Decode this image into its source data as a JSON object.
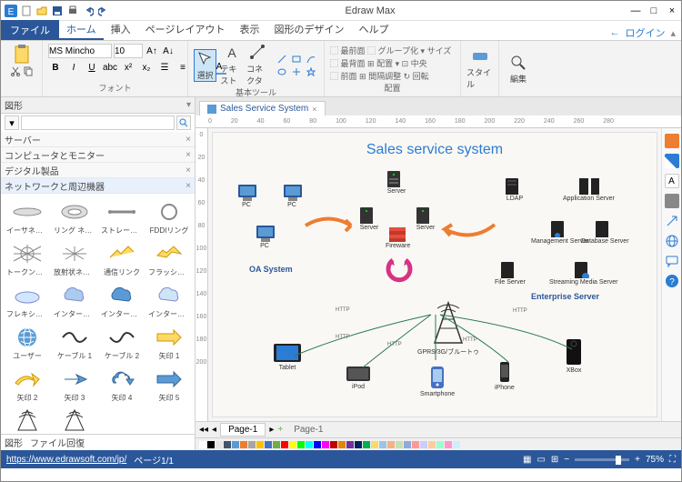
{
  "app_title": "Edraw Max",
  "window": {
    "minimize": "—",
    "maximize": "□",
    "close": "×"
  },
  "tabs": {
    "file": "ファイル",
    "items": [
      "ホーム",
      "挿入",
      "ページレイアウト",
      "表示",
      "図形のデザイン",
      "ヘルプ"
    ],
    "active": 0,
    "login": "ログイン"
  },
  "ribbon": {
    "font": {
      "name": "MS Mincho",
      "size": "10"
    },
    "groups": {
      "font": "フォント",
      "tools": "基本ツール",
      "arrange": "配置",
      "style": "スタイル",
      "edit": "編集"
    },
    "tools": {
      "select": "選択",
      "text": "テキスト",
      "connector": "コネクタ"
    },
    "arrange": [
      "最前面",
      "グループ化",
      "サイズ",
      "最背面",
      "配置",
      "中央",
      "前面",
      "間隔調整",
      "回転"
    ]
  },
  "shapes_panel": {
    "title": "図形",
    "categories": [
      "サーバー",
      "コンピュータとモニター",
      "デジタル製品",
      "ネットワークと周辺機器"
    ],
    "shapes": [
      "イーサネット",
      "リング ネット...",
      "ストレートバス",
      "FDDIリング",
      "トークンリング",
      "放射状ネッ...",
      "通信リンク",
      "フラッシュリンク",
      "フレキシノー...",
      "インターネッ...",
      "インターネッ...",
      "インターネッ...",
      "ユーザー",
      "ケーブル 1",
      "ケーブル 2",
      "矢印 1",
      "矢印 2",
      "矢印 3",
      "矢印 4",
      "矢印 5"
    ],
    "bottom_tabs": [
      "図形",
      "ファイル回復"
    ]
  },
  "doc": {
    "tab_name": "Sales Service System",
    "canvas_title": "Sales service system"
  },
  "sections": {
    "oa": "OA System",
    "enterprise": "Enterprise Server"
  },
  "nodes": {
    "pc1": "PC",
    "pc2": "PC",
    "pc3": "PC",
    "server1": "Server",
    "server2": "Server",
    "server3": "Server",
    "fireware": "Fireware",
    "ldap": "LDAP",
    "appserver": "Application Server",
    "mgmtserver": "Management Server",
    "dbserver": "Database Server",
    "fileserver": "File Server",
    "mediaserver": "Streaming Media Server",
    "tablet": "Tablet",
    "ipod": "iPod",
    "smartphone": "Smartphone",
    "iphone": "iPhone",
    "xbox": "XBox",
    "gprs": "GPRS/3G/ブルートゥ"
  },
  "labels": {
    "http": "HTTP"
  },
  "page": {
    "tab": "Page-1",
    "current": "Page-1"
  },
  "status": {
    "url": "https://www.edrawsoft.com/jp/",
    "page": "ページ1/1",
    "zoom": "75%"
  },
  "colors": {
    "accent": "#2b579a",
    "link": "#2b7cd3",
    "swatches": [
      "#ffffff",
      "#000000",
      "#e7e6e6",
      "#44546a",
      "#5b9bd5",
      "#ed7d31",
      "#a5a5a5",
      "#ffc000",
      "#4472c4",
      "#70ad47",
      "#ff0000",
      "#ffff00",
      "#00ff00",
      "#00ffff",
      "#0000ff",
      "#ff00ff",
      "#c00000",
      "#e08600",
      "#7030a0",
      "#002060",
      "#00b050",
      "#ffd966",
      "#9dc3e6",
      "#f4b183",
      "#c5e0b4",
      "#8faadc",
      "#ff9999",
      "#ccccff",
      "#ffcc99",
      "#99ffcc",
      "#ff99cc",
      "#cceeff"
    ]
  },
  "ruler": {
    "h": [
      "0",
      "20",
      "40",
      "60",
      "80",
      "100",
      "120",
      "140",
      "160",
      "180",
      "200",
      "220",
      "240",
      "260",
      "280"
    ],
    "v": [
      "0",
      "20",
      "40",
      "60",
      "80",
      "100",
      "120",
      "140",
      "160",
      "180",
      "200"
    ]
  }
}
